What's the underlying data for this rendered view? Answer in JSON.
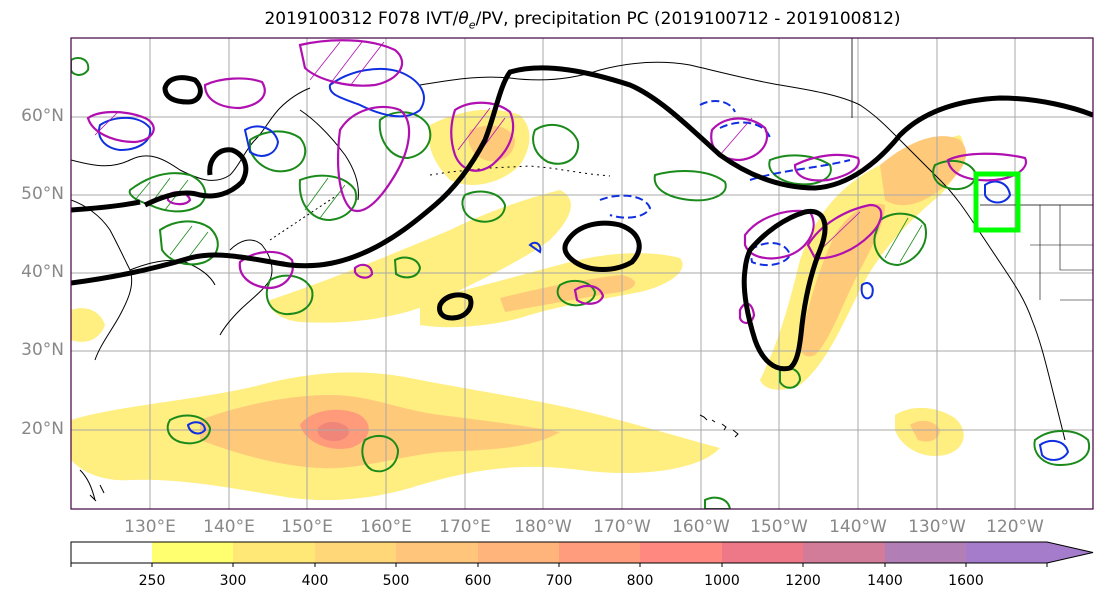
{
  "title": {
    "prefix": "2019100312 F078 IVT/",
    "theta": "θ",
    "theta_sub": "e",
    "suffix": "/PV, precipitation PC (2019100712 - 2019100812)"
  },
  "map": {
    "lat_labels": [
      "60°N",
      "50°N",
      "40°N",
      "30°N",
      "20°N"
    ],
    "lon_labels": [
      "130°E",
      "140°E",
      "150°E",
      "160°E",
      "170°E",
      "180°W",
      "170°W",
      "160°W",
      "150°W",
      "140°W",
      "130°W",
      "120°W"
    ],
    "colors": {
      "ivt_light": "#ffee80",
      "ivt_mid": "#ffc97a",
      "ivt_high": "#ff9a7a",
      "ivt_peak": "#f0857a",
      "green_contour": "#1a8a1a",
      "blue_contour": "#1030e0",
      "magenta_contour": "#b010b0",
      "black_contour": "#000000",
      "highlight_box": "#00ff00"
    }
  },
  "colorbar": {
    "ticks": [
      "250",
      "300",
      "400",
      "500",
      "600",
      "700",
      "800",
      "1000",
      "1200",
      "1400",
      "1600"
    ],
    "colors": [
      "#ffffff",
      "#ffff70",
      "#ffe875",
      "#ffd678",
      "#ffc57a",
      "#ffb47c",
      "#ff9c7d",
      "#ff8880",
      "#ee7888",
      "#d27c9a",
      "#b27eb6",
      "#a57ccb"
    ]
  }
}
